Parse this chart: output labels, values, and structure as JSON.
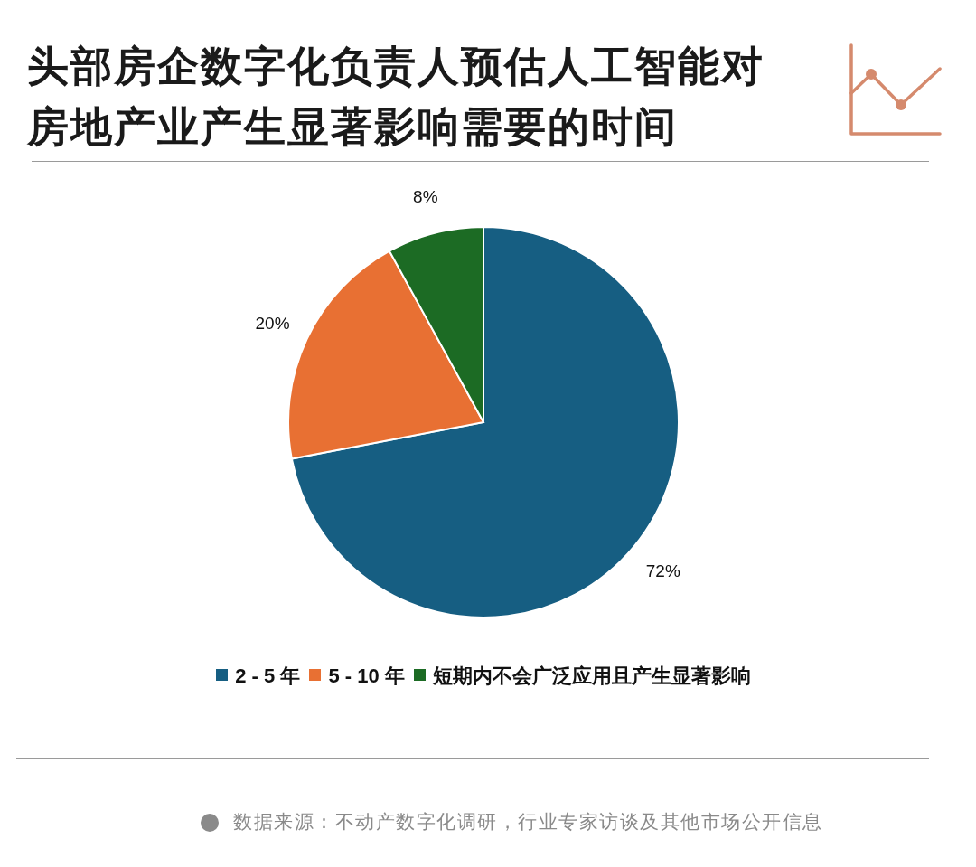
{
  "chart_data": {
    "type": "pie",
    "title": "头部房企数字化负责人预估人工智能对房地产业产生显著影响需要的时间",
    "categories": [
      "2 - 5 年",
      "5 - 10 年",
      "短期内不会广泛应用且产生显著影响"
    ],
    "values": [
      72,
      20,
      8
    ],
    "value_labels": [
      "72%",
      "20%",
      "8%"
    ],
    "colors": [
      "#165e82",
      "#e87033",
      "#1c6b24"
    ],
    "legend": "bottom",
    "annotations": [
      "数据来源：不动产数字化调研，行业专家访谈及其他市场公开信息"
    ]
  }
}
